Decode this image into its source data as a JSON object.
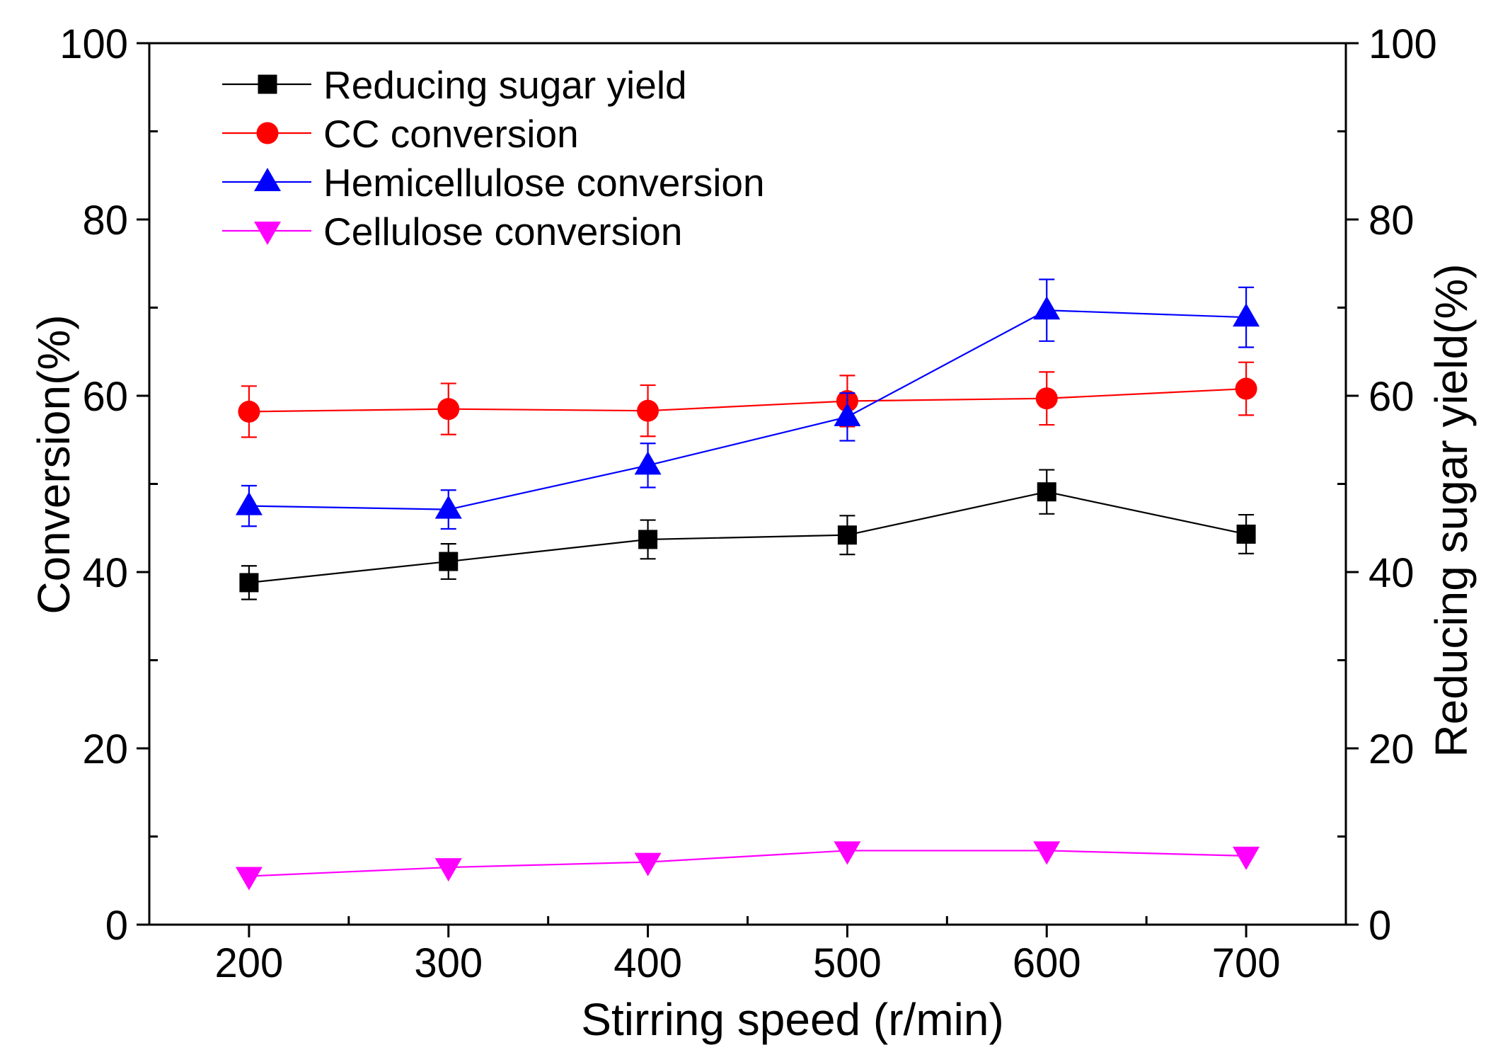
{
  "chart_data": {
    "type": "line",
    "title": "",
    "xlabel": "Stirring speed (r/min)",
    "ylabel": "Conversion(%)",
    "y2label": "Reducing sugar yield(%)",
    "xlim": [
      150,
      750
    ],
    "ylim": [
      0,
      100
    ],
    "y2lim": [
      0,
      100
    ],
    "xticks": [
      200,
      300,
      400,
      500,
      600,
      700
    ],
    "xtick_labels": [
      "200",
      "300",
      "400",
      "500",
      "600",
      "700"
    ],
    "xminor_ticks": [
      250,
      350,
      450,
      550,
      650
    ],
    "yticks": [
      0,
      20,
      40,
      60,
      80,
      100
    ],
    "ytick_labels": [
      "0",
      "20",
      "40",
      "60",
      "80",
      "100"
    ],
    "y2ticks": [
      0,
      20,
      40,
      60,
      80,
      100
    ],
    "y2tick_labels": [
      "0",
      "20",
      "40",
      "60",
      "80",
      "100"
    ],
    "yminor_ticks": [
      10,
      30,
      50,
      70,
      90
    ],
    "grid": false,
    "legend_position": "top-left",
    "x": [
      200,
      300,
      400,
      500,
      600,
      700
    ],
    "series": [
      {
        "name": "Reducing sugar yield",
        "color": "#000000",
        "marker_icon": "square",
        "y2": true,
        "values": [
          38.8,
          41.2,
          43.7,
          44.2,
          49.1,
          44.3
        ],
        "errors": [
          1.9,
          2.0,
          2.2,
          2.2,
          2.5,
          2.2
        ]
      },
      {
        "name": "CC conversion",
        "color": "#ff0000",
        "marker_icon": "circle",
        "y2": false,
        "values": [
          58.2,
          58.5,
          58.3,
          59.4,
          59.7,
          60.8
        ],
        "errors": [
          2.9,
          2.9,
          2.9,
          2.9,
          3.0,
          3.0
        ]
      },
      {
        "name": "Hemicellulose conversion",
        "color": "#0000ff",
        "marker_icon": "triangle-up",
        "y2": false,
        "values": [
          47.5,
          47.1,
          52.1,
          57.6,
          69.7,
          68.9
        ],
        "errors": [
          2.3,
          2.2,
          2.5,
          2.7,
          3.5,
          3.4
        ]
      },
      {
        "name": "Cellulose conversion",
        "color": "#ff00ff",
        "marker_icon": "triangle-down",
        "y2": false,
        "values": [
          5.5,
          6.5,
          7.1,
          8.4,
          8.4,
          7.8
        ]
      }
    ]
  }
}
